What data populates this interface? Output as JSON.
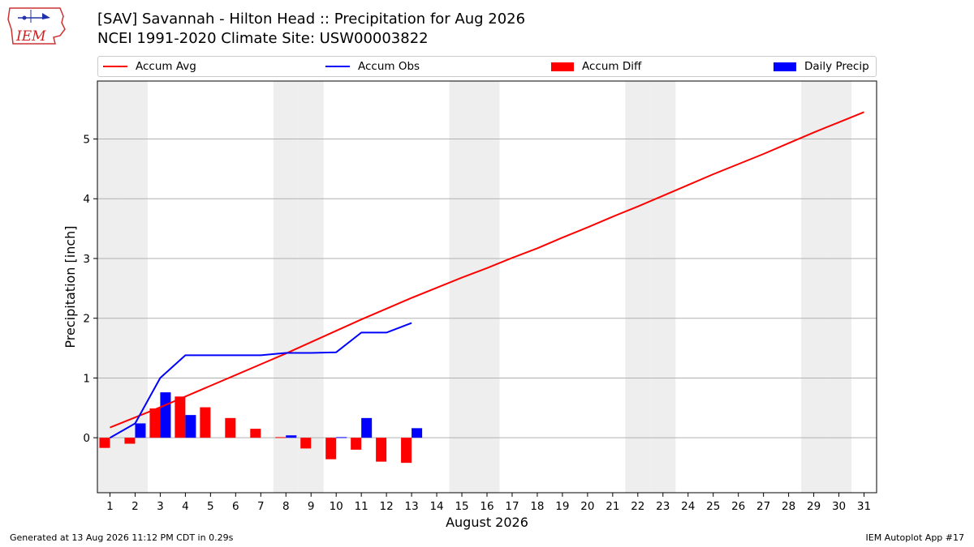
{
  "header": {
    "title_line1": "[SAV] Savannah - Hilton Head :: Precipitation for Aug 2026",
    "title_line2": "NCEI 1991-2020 Climate Site: USW00003822"
  },
  "logo": {
    "text": "IEM"
  },
  "colors": {
    "accum_avg": "#ff0000",
    "accum_obs": "#0000ff",
    "accum_diff": "#ff0000",
    "daily_precip": "#0000ff",
    "weekend_band": "#eeeeee",
    "grid": "#b0b0b0"
  },
  "chart_data": {
    "type": "line",
    "xlabel": "August 2026",
    "ylabel": "Precipitation [inch]",
    "xlim": [
      0.5,
      31.5
    ],
    "ylim": [
      -0.92,
      5.97
    ],
    "xticks": [
      "1",
      "2",
      "3",
      "4",
      "5",
      "6",
      "7",
      "8",
      "9",
      "10",
      "11",
      "12",
      "13",
      "14",
      "15",
      "16",
      "17",
      "18",
      "19",
      "20",
      "21",
      "22",
      "23",
      "24",
      "25",
      "26",
      "27",
      "28",
      "29",
      "30",
      "31"
    ],
    "yticks": [
      "0",
      "1",
      "2",
      "3",
      "4",
      "5"
    ],
    "grid": "horizontal",
    "legend_position": "top",
    "weekend_days": [
      1,
      2,
      8,
      9,
      15,
      16,
      22,
      23,
      29,
      30
    ],
    "series": [
      {
        "name": "Accum Avg",
        "kind": "line",
        "x": [
          1,
          2,
          3,
          4,
          5,
          6,
          7,
          8,
          9,
          10,
          11,
          12,
          13,
          14,
          15,
          16,
          17,
          18,
          19,
          20,
          21,
          22,
          23,
          24,
          25,
          26,
          27,
          28,
          29,
          30,
          31
        ],
        "values": [
          0.17,
          0.34,
          0.51,
          0.69,
          0.87,
          1.05,
          1.23,
          1.41,
          1.6,
          1.79,
          1.98,
          2.16,
          2.34,
          2.51,
          2.68,
          2.84,
          3.01,
          3.17,
          3.35,
          3.52,
          3.7,
          3.87,
          4.05,
          4.23,
          4.41,
          4.58,
          4.75,
          4.93,
          5.11,
          5.28,
          5.45
        ]
      },
      {
        "name": "Accum Obs",
        "kind": "line",
        "x": [
          1,
          2,
          3,
          4,
          5,
          6,
          7,
          8,
          9,
          10,
          11,
          12,
          13
        ],
        "values": [
          0.0,
          0.24,
          1.0,
          1.38,
          1.38,
          1.38,
          1.38,
          1.42,
          1.42,
          1.43,
          1.76,
          1.76,
          1.92
        ]
      },
      {
        "name": "Accum Diff",
        "kind": "bar",
        "x": [
          1,
          2,
          3,
          4,
          5,
          6,
          7,
          8,
          9,
          10,
          11,
          12,
          13
        ],
        "values": [
          -0.17,
          -0.1,
          0.49,
          0.69,
          0.51,
          0.33,
          0.15,
          0.01,
          -0.18,
          -0.36,
          -0.2,
          -0.4,
          -0.42
        ]
      },
      {
        "name": "Daily Precip",
        "kind": "bar",
        "x": [
          2,
          3,
          4,
          8,
          10,
          11,
          13
        ],
        "values": [
          0.24,
          0.76,
          0.38,
          0.04,
          0.01,
          0.33,
          0.16
        ]
      }
    ]
  },
  "footer": {
    "left": "Generated at 13 Aug 2026 11:12 PM CDT in 0.29s",
    "right": "IEM Autoplot App #17"
  }
}
